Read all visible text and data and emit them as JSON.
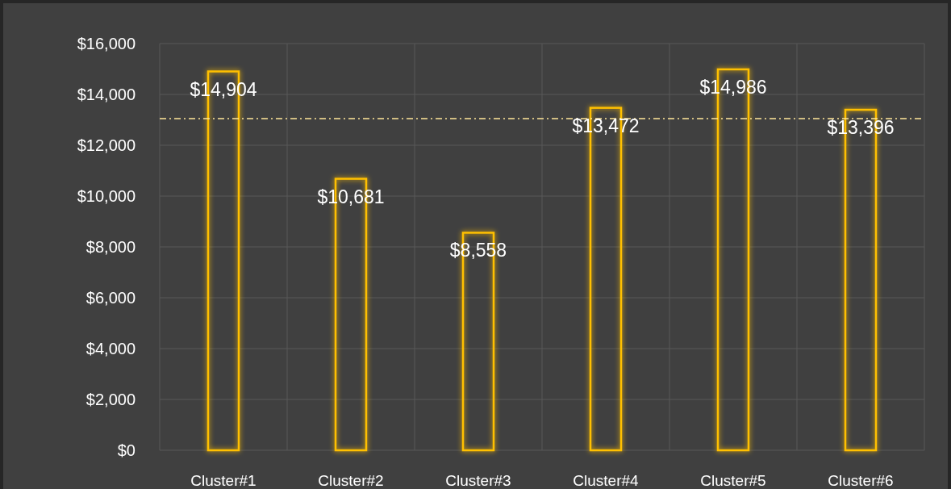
{
  "chart_data": {
    "type": "bar",
    "categories": [
      "Cluster#1",
      "Cluster#2",
      "Cluster#3",
      "Cluster#4",
      "Cluster#5",
      "Cluster#6"
    ],
    "values": [
      14904,
      10681,
      8558,
      13472,
      14986,
      13396
    ],
    "value_labels": [
      "$14,904",
      "$10,681",
      "$8,558",
      "$13,472",
      "$14,986",
      "$13,396"
    ],
    "color": "#ffc000",
    "ylim": [
      0,
      16000
    ],
    "yticks": [
      {
        "value": 0,
        "label": "$0"
      },
      {
        "value": 2000,
        "label": "$2,000"
      },
      {
        "value": 4000,
        "label": "$4,000"
      },
      {
        "value": 6000,
        "label": "$6,000"
      },
      {
        "value": 8000,
        "label": "$8,000"
      },
      {
        "value": 10000,
        "label": "$10,000"
      },
      {
        "value": 12000,
        "label": "$12,000"
      },
      {
        "value": 14000,
        "label": "$14,000"
      },
      {
        "value": 16000,
        "label": "$16,000"
      }
    ],
    "grid": true,
    "ref_lines": [
      {
        "axis": "y",
        "value": 13050,
        "color": "#ffe699",
        "line_style": "dashdot"
      }
    ]
  }
}
